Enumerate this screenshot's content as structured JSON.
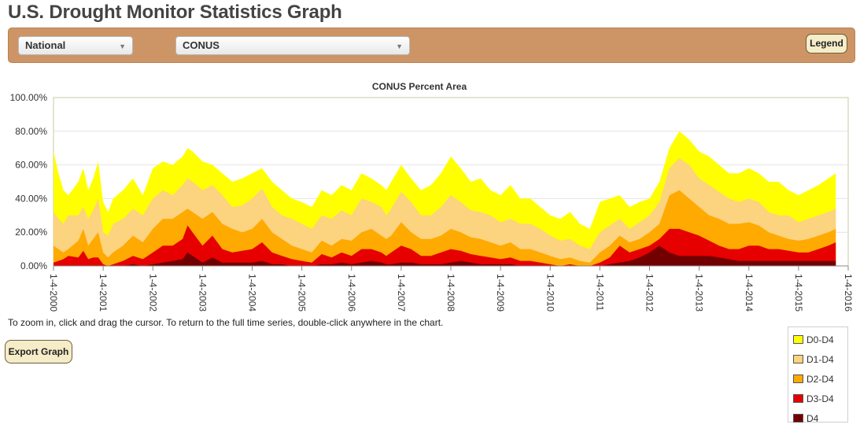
{
  "page": {
    "title": "U.S. Drought Monitor Statistics Graph"
  },
  "controls": {
    "level_select": {
      "value": "National"
    },
    "region_select": {
      "value": "CONUS"
    },
    "legend_button": "Legend",
    "export_button": "Export Graph"
  },
  "hint": "To zoom in, click and drag the cursor. To return to the full time series, double-click anywhere in the chart.",
  "legend": [
    {
      "label": "D0-D4",
      "color": "#ffff00"
    },
    {
      "label": "D1-D4",
      "color": "#fcd37f"
    },
    {
      "label": "D2-D4",
      "color": "#ffaa00"
    },
    {
      "label": "D3-D4",
      "color": "#e60000"
    },
    {
      "label": "D4",
      "color": "#730000"
    }
  ],
  "chart_data": {
    "type": "area",
    "title": "CONUS Percent Area",
    "y_ticks": [
      "0.00%",
      "20.00%",
      "40.00%",
      "60.00%",
      "80.00%",
      "100.00%"
    ],
    "ylim": [
      0,
      100
    ],
    "xlim": [
      2000.0,
      2016.0
    ],
    "x_ticks": [
      "1-4-2000",
      "1-4-2001",
      "1-4-2002",
      "1-4-2003",
      "1-4-2004",
      "1-4-2005",
      "1-4-2006",
      "1-4-2007",
      "1-4-2008",
      "1-4-2009",
      "1-4-2010",
      "1-4-2011",
      "1-4-2012",
      "1-4-2013",
      "1-4-2014",
      "1-4-2015",
      "1-4-2016"
    ],
    "x": [
      2000.0,
      2000.1,
      2000.2,
      2000.3,
      2000.5,
      2000.6,
      2000.7,
      2000.8,
      2000.9,
      2001.0,
      2001.1,
      2001.2,
      2001.4,
      2001.6,
      2001.8,
      2002.0,
      2002.2,
      2002.4,
      2002.6,
      2002.7,
      2002.8,
      2003.0,
      2003.2,
      2003.4,
      2003.6,
      2003.8,
      2004.0,
      2004.2,
      2004.4,
      2004.6,
      2004.8,
      2005.0,
      2005.2,
      2005.4,
      2005.6,
      2005.8,
      2006.0,
      2006.2,
      2006.4,
      2006.6,
      2006.7,
      2006.8,
      2007.0,
      2007.2,
      2007.4,
      2007.6,
      2007.8,
      2008.0,
      2008.2,
      2008.4,
      2008.6,
      2008.8,
      2009.0,
      2009.2,
      2009.4,
      2009.6,
      2009.8,
      2010.0,
      2010.2,
      2010.4,
      2010.6,
      2010.8,
      2011.0,
      2011.2,
      2011.4,
      2011.6,
      2011.8,
      2012.0,
      2012.2,
      2012.4,
      2012.6,
      2012.8,
      2013.0,
      2013.2,
      2013.4,
      2013.6,
      2013.8,
      2014.0,
      2014.2,
      2014.4,
      2014.6,
      2014.8,
      2015.0,
      2015.2,
      2015.4,
      2015.6,
      2015.75
    ],
    "series": [
      {
        "name": "D0-D4",
        "color": "#ffff00",
        "values": [
          68,
          55,
          45,
          42,
          50,
          58,
          45,
          52,
          62,
          38,
          32,
          40,
          45,
          52,
          42,
          58,
          62,
          60,
          65,
          70,
          68,
          62,
          60,
          55,
          50,
          52,
          55,
          58,
          50,
          45,
          40,
          38,
          35,
          45,
          42,
          48,
          45,
          55,
          52,
          48,
          45,
          50,
          60,
          52,
          45,
          48,
          55,
          65,
          58,
          50,
          52,
          45,
          42,
          48,
          40,
          40,
          35,
          30,
          28,
          32,
          25,
          22,
          38,
          40,
          42,
          35,
          38,
          40,
          50,
          70,
          80,
          75,
          68,
          65,
          60,
          55,
          55,
          58,
          55,
          50,
          50,
          45,
          42,
          45,
          48,
          52,
          55
        ]
      },
      {
        "name": "D1-D4",
        "color": "#fcd37f",
        "values": [
          32,
          28,
          25,
          30,
          30,
          35,
          28,
          33,
          40,
          20,
          18,
          25,
          28,
          34,
          30,
          40,
          45,
          42,
          48,
          52,
          50,
          45,
          48,
          42,
          35,
          36,
          40,
          46,
          35,
          30,
          28,
          25,
          22,
          30,
          28,
          33,
          30,
          40,
          38,
          35,
          30,
          34,
          44,
          38,
          30,
          30,
          35,
          42,
          38,
          33,
          32,
          30,
          26,
          28,
          25,
          25,
          22,
          18,
          15,
          16,
          12,
          10,
          20,
          24,
          28,
          22,
          26,
          30,
          38,
          58,
          64,
          60,
          52,
          48,
          44,
          40,
          38,
          40,
          38,
          32,
          30,
          30,
          26,
          28,
          30,
          32,
          34
        ]
      },
      {
        "name": "D2-D4",
        "color": "#ffaa00",
        "values": [
          12,
          10,
          8,
          10,
          15,
          22,
          12,
          16,
          20,
          8,
          5,
          8,
          12,
          18,
          14,
          22,
          28,
          28,
          32,
          34,
          32,
          28,
          32,
          25,
          22,
          20,
          22,
          28,
          20,
          16,
          12,
          10,
          8,
          15,
          12,
          16,
          15,
          20,
          22,
          18,
          16,
          18,
          26,
          20,
          16,
          16,
          18,
          22,
          20,
          17,
          16,
          14,
          12,
          14,
          10,
          10,
          8,
          6,
          4,
          5,
          3,
          2,
          8,
          12,
          18,
          14,
          16,
          20,
          25,
          42,
          45,
          40,
          35,
          30,
          28,
          25,
          25,
          26,
          24,
          20,
          18,
          16,
          15,
          16,
          18,
          20,
          22
        ]
      },
      {
        "name": "D3-D4",
        "color": "#e60000",
        "values": [
          2,
          3,
          4,
          6,
          5,
          9,
          4,
          5,
          5,
          1,
          0,
          1,
          3,
          6,
          4,
          8,
          12,
          12,
          16,
          24,
          20,
          12,
          18,
          10,
          8,
          9,
          10,
          14,
          8,
          6,
          4,
          3,
          2,
          7,
          5,
          8,
          6,
          10,
          10,
          8,
          6,
          8,
          12,
          10,
          6,
          6,
          8,
          10,
          9,
          7,
          6,
          5,
          4,
          5,
          3,
          3,
          2,
          1,
          0,
          1,
          0,
          0,
          2,
          5,
          12,
          8,
          10,
          12,
          16,
          22,
          22,
          20,
          18,
          15,
          12,
          10,
          10,
          12,
          12,
          10,
          10,
          9,
          8,
          8,
          10,
          12,
          14
        ]
      },
      {
        "name": "D4",
        "color": "#730000",
        "values": [
          0,
          0,
          0,
          0,
          0,
          0,
          0,
          0,
          0,
          0,
          0,
          0,
          0,
          1,
          0,
          1,
          2,
          3,
          4,
          8,
          6,
          2,
          5,
          2,
          2,
          2,
          2,
          3,
          1,
          1,
          0,
          0,
          0,
          1,
          1,
          2,
          1,
          2,
          3,
          2,
          1,
          1,
          2,
          2,
          1,
          1,
          1,
          2,
          3,
          2,
          1,
          1,
          1,
          1,
          0,
          0,
          0,
          0,
          0,
          0,
          0,
          0,
          0,
          1,
          2,
          3,
          5,
          8,
          12,
          8,
          6,
          6,
          6,
          6,
          5,
          4,
          3,
          3,
          3,
          3,
          3,
          3,
          3,
          3,
          3,
          3,
          3
        ]
      }
    ]
  }
}
